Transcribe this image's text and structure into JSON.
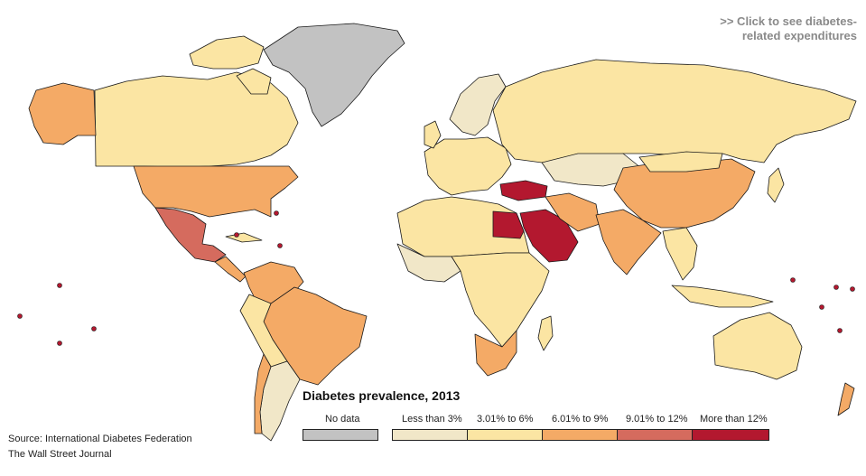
{
  "link": {
    "cta_line1": ">> Click to see diabetes-",
    "cta_line2": "related expenditures"
  },
  "legend": {
    "title": "Diabetes prevalence, 2013",
    "nodata": {
      "label": "No data",
      "color": "#c2c2c2"
    },
    "classes": [
      {
        "label": "Less than 3%",
        "color": "#f1e7c8"
      },
      {
        "label": "3.01% to 6%",
        "color": "#fbe5a3"
      },
      {
        "label": "6.01% to 9%",
        "color": "#f4aa66"
      },
      {
        "label": "9.01% to 12%",
        "color": "#d56b5e"
      },
      {
        "label": "More than 12%",
        "color": "#b3182f"
      }
    ]
  },
  "source": {
    "line1": "Source: International Diabetes Federation",
    "line2": "The Wall Street Journal"
  },
  "colors": {
    "ocean": "#ffffff",
    "outline": "#1a1a1a"
  }
}
